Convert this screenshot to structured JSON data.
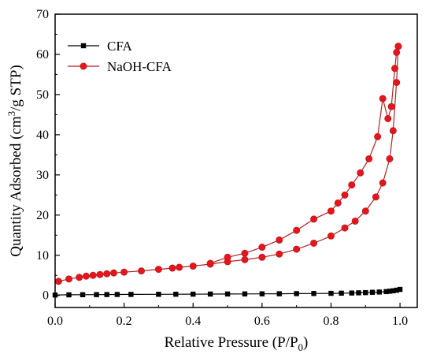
{
  "chart_data": {
    "type": "line",
    "xlabel_main": "Relative Pressure (P/P",
    "xlabel_sub": "0",
    "xlabel_end": ")",
    "ylabel_main": "Quantity Adsorbed (cm",
    "ylabel_sup": "3",
    "ylabel_end": "/g STP)",
    "xlim": [
      0.0,
      1.05
    ],
    "ylim": [
      -3,
      70
    ],
    "xticks": [
      "0.0",
      "0.2",
      "0.4",
      "0.6",
      "0.8",
      "1.0"
    ],
    "yticks": [
      "0",
      "10",
      "20",
      "30",
      "40",
      "50",
      "60",
      "70"
    ],
    "legend_position": "top-left",
    "series": [
      {
        "name": "CFA",
        "color": "#000000",
        "marker": "square",
        "branches": [
          {
            "x": [
              0.0,
              0.04,
              0.08,
              0.12,
              0.15,
              0.18,
              0.22,
              0.3,
              0.35,
              0.4,
              0.45,
              0.5,
              0.55,
              0.6,
              0.65,
              0.7,
              0.75,
              0.8,
              0.83,
              0.86,
              0.88,
              0.9,
              0.92,
              0.94,
              0.96,
              0.97,
              0.98,
              0.99,
              1.0
            ],
            "y": [
              0.1,
              0.15,
              0.18,
              0.2,
              0.22,
              0.24,
              0.25,
              0.28,
              0.3,
              0.32,
              0.34,
              0.36,
              0.38,
              0.4,
              0.42,
              0.45,
              0.48,
              0.52,
              0.56,
              0.6,
              0.65,
              0.7,
              0.78,
              0.85,
              0.95,
              1.05,
              1.15,
              1.3,
              1.5
            ]
          }
        ]
      },
      {
        "name": "NaOH-CFA",
        "color": "#b22222",
        "fill": "#e8141c",
        "marker": "circle",
        "branches": [
          {
            "x": [
              0.01,
              0.04,
              0.07,
              0.09,
              0.11,
              0.13,
              0.15,
              0.17,
              0.2,
              0.25,
              0.3,
              0.34,
              0.36,
              0.4,
              0.45,
              0.5,
              0.55,
              0.6,
              0.65,
              0.7,
              0.75,
              0.8,
              0.84,
              0.87,
              0.9,
              0.93,
              0.95,
              0.97,
              0.98,
              0.99,
              0.995
            ],
            "y": [
              3.5,
              4.1,
              4.5,
              4.8,
              5.0,
              5.2,
              5.4,
              5.6,
              5.8,
              6.1,
              6.5,
              6.8,
              7.0,
              7.3,
              7.8,
              8.4,
              8.9,
              9.5,
              10.3,
              11.5,
              13.0,
              14.8,
              16.8,
              18.5,
              21.0,
              24.5,
              28.0,
              34.0,
              41.0,
              53.0,
              62.0
            ]
          },
          {
            "x": [
              0.995,
              0.99,
              0.985,
              0.975,
              0.965,
              0.95,
              0.935,
              0.91,
              0.885,
              0.86,
              0.84,
              0.82,
              0.8,
              0.75,
              0.7,
              0.65,
              0.6,
              0.55,
              0.5,
              0.45
            ],
            "y": [
              62.0,
              60.5,
              56.5,
              47.0,
              44.0,
              49.0,
              39.5,
              34.0,
              30.5,
              27.5,
              25.0,
              23.0,
              21.0,
              19.0,
              16.2,
              13.8,
              12.0,
              10.5,
              9.5,
              8.0
            ]
          }
        ]
      }
    ]
  }
}
